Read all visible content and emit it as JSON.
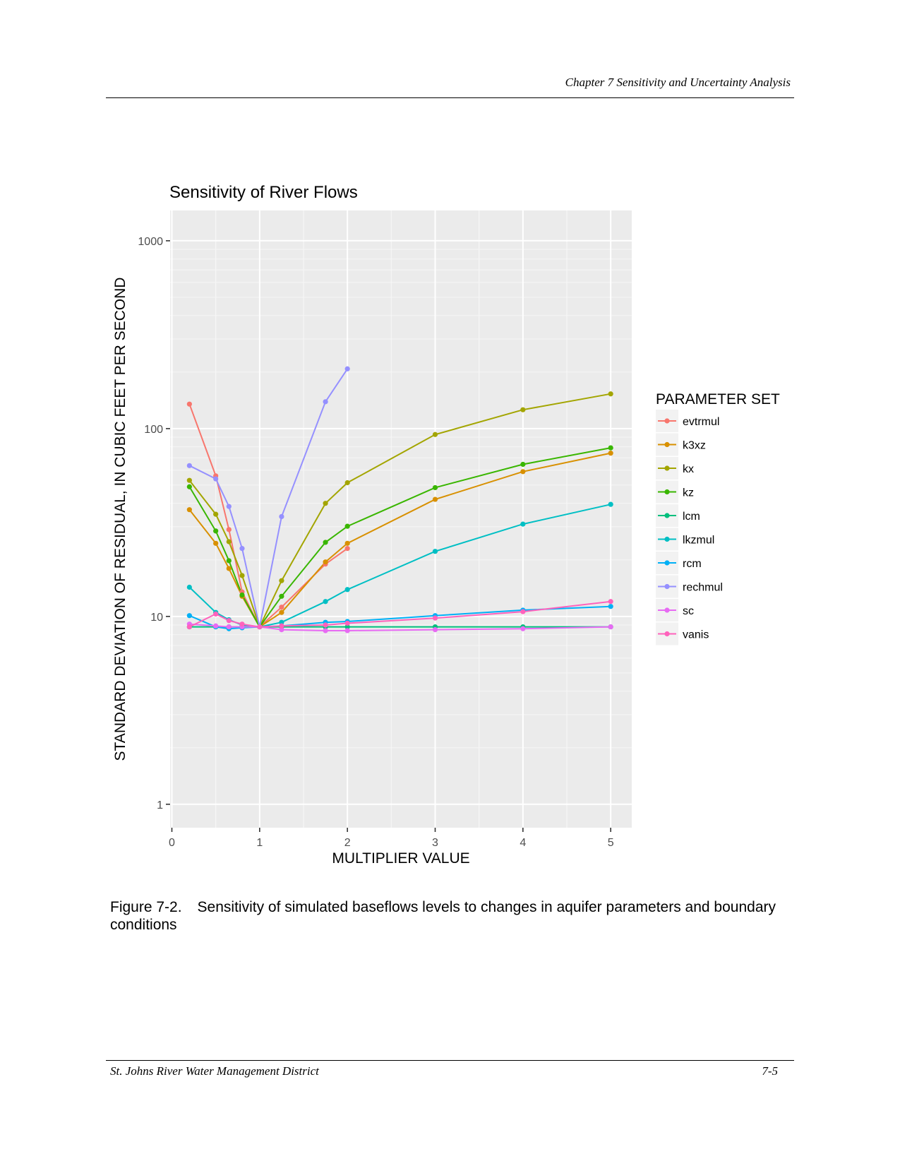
{
  "page_header": "Chapter 7  Sensitivity and Uncertainty Analysis",
  "caption": {
    "number": "Figure 7-2.",
    "text": "Sensitivity of simulated baseflows levels to changes in aquifer parameters and boundary conditions"
  },
  "footer": {
    "left": "St. Johns River Water Management District",
    "right": "7-5"
  },
  "chart_data": {
    "type": "line",
    "title": "Sensitivity of River Flows",
    "xlabel": "MULTIPLIER VALUE",
    "ylabel": "STANDARD DEVIATION OF RESIDUAL, IN CUBIC FEET PER SECOND",
    "x_ticks": [
      "0",
      "1",
      "2",
      "3",
      "4",
      "5"
    ],
    "y_ticks": [
      "1",
      "10",
      "100",
      "1000"
    ],
    "y_scale": "log",
    "xlim": [
      -0.02,
      5.24
    ],
    "ylim": [
      0.75,
      1450
    ],
    "grid": true,
    "legend_title": "PARAMETER SET",
    "legend_position": "right",
    "series": [
      {
        "name": "evtrmul",
        "color": "#F8766D",
        "x": [
          0.2,
          0.5,
          0.65,
          0.8,
          1,
          1.25,
          1.75,
          2
        ],
        "y": [
          135,
          56,
          29,
          13.5,
          8.8,
          11.2,
          19,
          23
        ]
      },
      {
        "name": "k3xz",
        "color": "#D89000",
        "x": [
          0.2,
          0.5,
          0.65,
          0.8,
          1,
          1.25,
          1.75,
          2,
          3,
          4,
          5
        ],
        "y": [
          37,
          24.5,
          18,
          12.8,
          8.8,
          10.5,
          19.5,
          24.5,
          42,
          59,
          74
        ]
      },
      {
        "name": "kx",
        "color": "#A3A500",
        "x": [
          0.2,
          0.5,
          0.65,
          0.8,
          1,
          1.25,
          1.75,
          2,
          3,
          4,
          5
        ],
        "y": [
          53,
          35,
          25,
          16.5,
          8.8,
          15.5,
          40,
          51.5,
          93,
          126,
          153
        ]
      },
      {
        "name": "kz",
        "color": "#39B600",
        "x": [
          0.2,
          0.5,
          0.65,
          0.8,
          1,
          1.25,
          1.75,
          2,
          3,
          4,
          5
        ],
        "y": [
          49,
          28.5,
          19.8,
          13,
          8.8,
          12.8,
          24.8,
          30.2,
          48.5,
          64.5,
          79
        ]
      },
      {
        "name": "lcm",
        "color": "#00BF7D",
        "x": [
          0.2,
          0.5,
          0.65,
          0.8,
          1,
          1.25,
          1.75,
          2,
          3,
          4,
          5
        ],
        "y": [
          8.8,
          8.8,
          8.8,
          8.8,
          8.8,
          8.8,
          8.8,
          8.8,
          8.8,
          8.8,
          8.8
        ]
      },
      {
        "name": "lkzmul",
        "color": "#00BFC4",
        "x": [
          0.2,
          0.5,
          0.65,
          0.8,
          1,
          1.25,
          1.75,
          2,
          3,
          4,
          5
        ],
        "y": [
          14.3,
          10.5,
          9.6,
          9,
          8.8,
          9.3,
          12,
          13.9,
          22.2,
          31,
          39.5
        ]
      },
      {
        "name": "rcm",
        "color": "#00B0F6",
        "x": [
          0.2,
          0.5,
          0.65,
          0.8,
          1,
          1.25,
          1.75,
          2,
          3,
          4,
          5
        ],
        "y": [
          10.1,
          8.8,
          8.6,
          8.7,
          8.8,
          8.9,
          9.3,
          9.4,
          10.1,
          10.8,
          11.3
        ]
      },
      {
        "name": "rechmul",
        "color": "#9590FF",
        "x": [
          0.2,
          0.5,
          0.65,
          0.8,
          1,
          1.25,
          1.75,
          2
        ],
        "y": [
          63.5,
          54,
          38.5,
          23,
          8.8,
          34,
          139,
          208
        ]
      },
      {
        "name": "sc",
        "color": "#E76BF3",
        "x": [
          0.2,
          0.5,
          0.65,
          0.8,
          1,
          1.25,
          1.75,
          2,
          3,
          4,
          5
        ],
        "y": [
          9.1,
          8.9,
          8.8,
          8.8,
          8.8,
          8.5,
          8.4,
          8.4,
          8.5,
          8.6,
          8.8
        ]
      },
      {
        "name": "vanis",
        "color": "#FF62BC",
        "x": [
          0.2,
          0.5,
          0.65,
          0.8,
          1,
          1.25,
          1.75,
          2,
          3,
          4,
          5
        ],
        "y": [
          8.8,
          10.3,
          9.5,
          9.1,
          8.8,
          8.9,
          9,
          9.2,
          9.8,
          10.6,
          12
        ]
      }
    ]
  }
}
